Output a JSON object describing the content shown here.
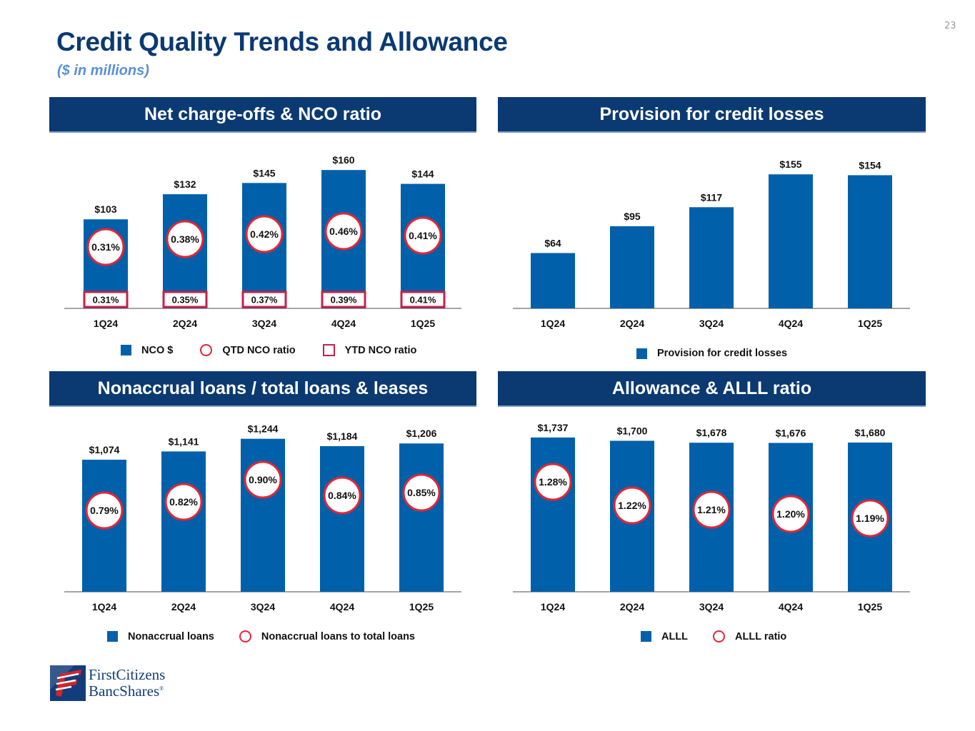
{
  "page": {
    "number": "23",
    "title": "Credit Quality Trends and Allowance",
    "subtitle": "($ in millions)"
  },
  "colors": {
    "navy": "#0b3a72",
    "bar_blue": "#0060a9",
    "circle_red": "#e32636",
    "box_red": "#c8204a",
    "subtitle_blue": "#5a8fd6"
  },
  "logo": {
    "line1": "FirstCitizens",
    "line2": "BancShares",
    "reg": "®"
  },
  "chart_data": [
    {
      "id": "nco",
      "type": "bar",
      "title": "Net charge-offs & NCO ratio",
      "categories": [
        "1Q24",
        "2Q24",
        "3Q24",
        "4Q24",
        "1Q25"
      ],
      "series": [
        {
          "name": "NCO $",
          "values": [
            103,
            132,
            145,
            160,
            144
          ],
          "labels": [
            "$103",
            "$132",
            "$145",
            "$160",
            "$144"
          ]
        },
        {
          "name": "QTD NCO ratio",
          "values": [
            0.31,
            0.38,
            0.42,
            0.46,
            0.41
          ],
          "labels": [
            "0.31%",
            "0.38%",
            "0.42%",
            "0.46%",
            "0.41%"
          ]
        },
        {
          "name": "YTD NCO ratio",
          "values": [
            0.31,
            0.35,
            0.37,
            0.39,
            0.41
          ],
          "labels": [
            "0.31%",
            "0.35%",
            "0.37%",
            "0.39%",
            "0.41%"
          ]
        }
      ],
      "legend": [
        {
          "marker": "square",
          "label": "NCO $"
        },
        {
          "marker": "circle",
          "label": "QTD NCO ratio"
        },
        {
          "marker": "box",
          "label": "YTD NCO ratio"
        }
      ],
      "xlabel": "",
      "ylabel": "",
      "ylim": [
        0,
        175
      ],
      "grid": false,
      "legend_position": "bottom"
    },
    {
      "id": "provision",
      "type": "bar",
      "title": "Provision for credit losses",
      "categories": [
        "1Q24",
        "2Q24",
        "3Q24",
        "4Q24",
        "1Q25"
      ],
      "series": [
        {
          "name": "Provision for credit losses",
          "values": [
            64,
            95,
            117,
            155,
            154
          ],
          "labels": [
            "$64",
            "$95",
            "$117",
            "$155",
            "$154"
          ]
        }
      ],
      "legend": [
        {
          "marker": "square",
          "label": "Provision for credit losses"
        }
      ],
      "xlabel": "",
      "ylabel": "",
      "ylim": [
        0,
        175
      ],
      "grid": false,
      "legend_position": "bottom"
    },
    {
      "id": "nonaccrual",
      "type": "bar",
      "title": "Nonaccrual loans / total loans & leases",
      "categories": [
        "1Q24",
        "2Q24",
        "3Q24",
        "4Q24",
        "1Q25"
      ],
      "series": [
        {
          "name": "Nonaccrual loans",
          "values": [
            1074,
            1141,
            1244,
            1184,
            1206
          ],
          "labels": [
            "$1,074",
            "$1,141",
            "$1,244",
            "$1,184",
            "$1,206"
          ]
        },
        {
          "name": "Nonaccrual loans to total loans",
          "values": [
            0.79,
            0.82,
            0.9,
            0.84,
            0.85
          ],
          "labels": [
            "0.79%",
            "0.82%",
            "0.90%",
            "0.84%",
            "0.85%"
          ]
        }
      ],
      "legend": [
        {
          "marker": "square",
          "label": "Nonaccrual loans"
        },
        {
          "marker": "circle",
          "label": "Nonaccrual loans to total loans"
        }
      ],
      "xlabel": "",
      "ylabel": "",
      "ylim": [
        0,
        1300
      ],
      "grid": false,
      "legend_position": "bottom"
    },
    {
      "id": "allowance",
      "type": "bar",
      "title": "Allowance & ALLL ratio",
      "categories": [
        "1Q24",
        "2Q24",
        "3Q24",
        "4Q24",
        "1Q25"
      ],
      "series": [
        {
          "name": "ALLL",
          "values": [
            1737,
            1700,
            1678,
            1676,
            1680
          ],
          "labels": [
            "$1,737",
            "$1,700",
            "$1,678",
            "$1,676",
            "$1,680"
          ]
        },
        {
          "name": "ALLL ratio",
          "values": [
            1.28,
            1.22,
            1.21,
            1.2,
            1.19
          ],
          "labels": [
            "1.28%",
            "1.22%",
            "1.21%",
            "1.20%",
            "1.19%"
          ]
        }
      ],
      "legend": [
        {
          "marker": "square",
          "label": "ALLL"
        },
        {
          "marker": "circle",
          "label": "ALLL ratio"
        }
      ],
      "xlabel": "",
      "ylabel": "",
      "ylim": [
        0,
        1800
      ],
      "grid": false,
      "legend_position": "bottom"
    }
  ]
}
